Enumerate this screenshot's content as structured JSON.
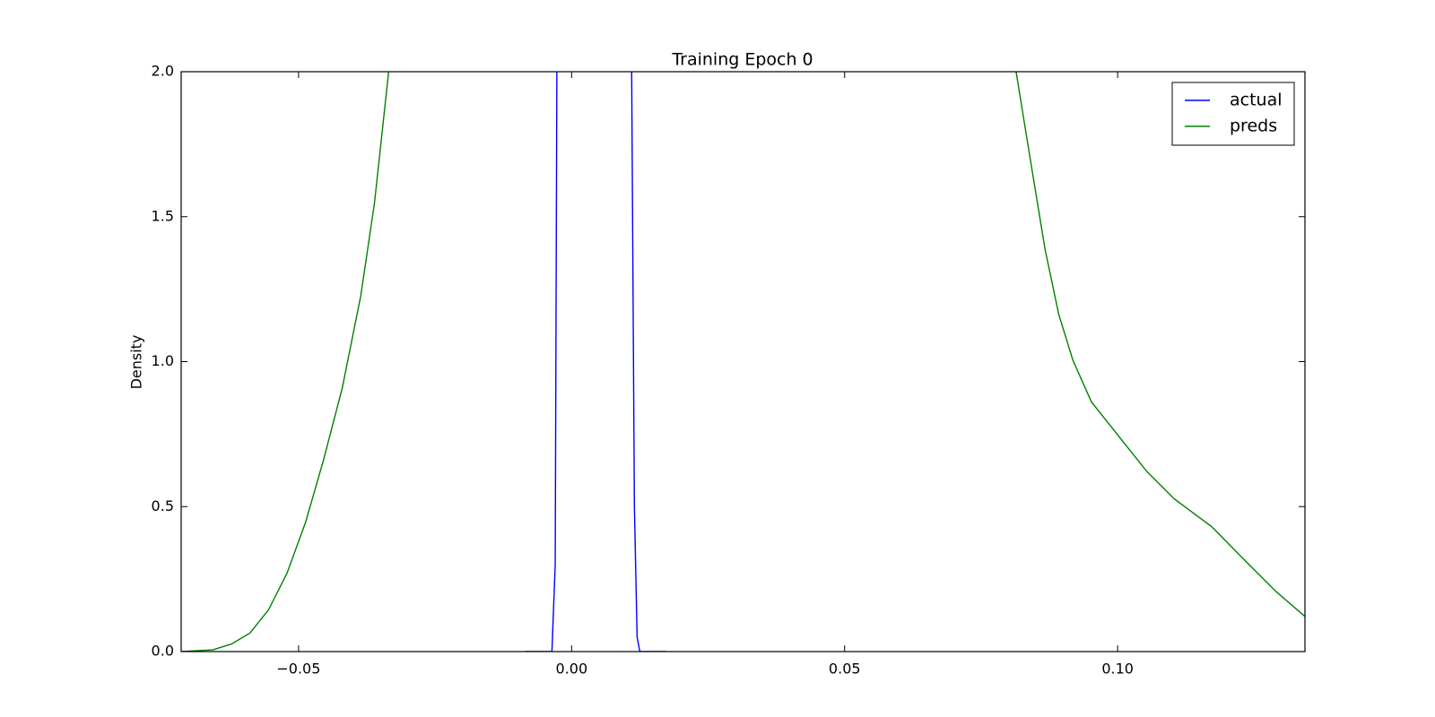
{
  "chart_data": {
    "type": "line",
    "title": "Training Epoch 0",
    "y_label": "Density",
    "xlim": [
      -0.0715,
      0.1343
    ],
    "ylim": [
      0,
      2
    ],
    "xticks": [
      {
        "value": -0.05,
        "label": "−0.05"
      },
      {
        "value": 0,
        "label": "0.00"
      },
      {
        "value": 0.05,
        "label": "0.05"
      },
      {
        "value": 0.1,
        "label": "0.10"
      }
    ],
    "yticks": [
      {
        "value": 0,
        "label": "0.0"
      },
      {
        "value": 0.5,
        "label": "0.5"
      },
      {
        "value": 1,
        "label": "1.0"
      },
      {
        "value": 1.5,
        "label": "1.5"
      },
      {
        "value": 2,
        "label": "2.0"
      }
    ],
    "legend": "upper right",
    "series": [
      {
        "name": "actual",
        "color": "#0000ff",
        "x": [
          -0.0085,
          -0.0036,
          -0.003,
          -0.0027,
          null,
          0.011,
          0.0115,
          0.012,
          0.0125,
          0.0173
        ],
        "values": [
          0,
          0,
          0.3,
          2,
          null,
          2,
          0.5,
          0.05,
          0,
          0
        ]
      },
      {
        "name": "preds",
        "color": "#008000",
        "x": [
          -0.0715,
          -0.0657,
          -0.0623,
          -0.0589,
          -0.0555,
          -0.0521,
          -0.0487,
          -0.0454,
          -0.042,
          -0.0386,
          -0.0361,
          -0.0335,
          null,
          0.0814,
          0.0842,
          0.0867,
          0.0892,
          0.0918,
          0.0952,
          0.0999,
          0.1053,
          0.1104,
          0.1172,
          0.1239,
          0.129,
          0.1343
        ],
        "values": [
          0,
          0.006,
          0.026,
          0.064,
          0.144,
          0.271,
          0.447,
          0.663,
          0.909,
          1.228,
          1.547,
          2,
          null,
          2,
          1.675,
          1.388,
          1.164,
          1.005,
          0.861,
          0.75,
          0.622,
          0.526,
          0.431,
          0.303,
          0.207,
          0.121
        ]
      }
    ]
  }
}
